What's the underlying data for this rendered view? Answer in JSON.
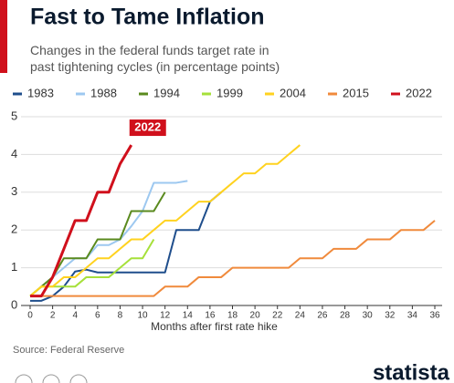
{
  "chart_data": {
    "type": "line",
    "title": "Fast to Tame Inflation",
    "subtitle": "Changes in the federal funds target rate in past tightening cycles (in percentage points)",
    "xlabel": "Months after first rate hike",
    "source": "Source: Federal Reserve",
    "brand": "statista",
    "xlim": [
      0,
      36
    ],
    "xticks": [
      0,
      2,
      4,
      6,
      8,
      10,
      12,
      14,
      16,
      18,
      20,
      22,
      24,
      26,
      28,
      30,
      32,
      34,
      36
    ],
    "ylim": [
      0,
      5
    ],
    "yticks": [
      0,
      1,
      2,
      3,
      4,
      5
    ],
    "grid": true,
    "series": [
      {
        "name": "1983",
        "color": "#1f4e8c",
        "x": [
          0,
          1,
          2,
          3,
          4,
          5,
          6,
          7,
          8,
          9,
          10,
          11,
          12,
          13,
          14,
          15,
          16,
          17
        ],
        "values": [
          0.125,
          0.125,
          0.25,
          0.5,
          0.9,
          0.95,
          0.875,
          0.875,
          0.875,
          0.875,
          0.875,
          0.875,
          0.875,
          2,
          2,
          2,
          2.75,
          3
        ]
      },
      {
        "name": "1988",
        "color": "#9dc8f0",
        "x": [
          0,
          1,
          2,
          3,
          4,
          5,
          6,
          7,
          8,
          9,
          10,
          11,
          12,
          13,
          14
        ],
        "values": [
          0.25,
          0.5,
          0.75,
          1,
          1.25,
          1.25,
          1.6,
          1.6,
          1.75,
          2.1,
          2.5,
          3.25,
          3.25,
          3.25,
          3.3
        ]
      },
      {
        "name": "1994",
        "color": "#5a8a1e",
        "x": [
          0,
          1,
          2,
          3,
          4,
          5,
          6,
          7,
          8,
          9,
          10,
          11,
          12
        ],
        "values": [
          0.25,
          0.5,
          0.75,
          1.25,
          1.25,
          1.25,
          1.75,
          1.75,
          1.75,
          2.5,
          2.5,
          2.5,
          3
        ]
      },
      {
        "name": "1999",
        "color": "#a6e03a",
        "x": [
          0,
          1,
          2,
          3,
          4,
          5,
          6,
          7,
          8,
          9,
          10,
          11
        ],
        "values": [
          0.25,
          0.5,
          0.5,
          0.5,
          0.5,
          0.75,
          0.75,
          0.75,
          1,
          1.25,
          1.25,
          1.75
        ]
      },
      {
        "name": "2004",
        "color": "#ffd21f",
        "x": [
          0,
          1,
          2,
          3,
          4,
          5,
          6,
          7,
          8,
          9,
          10,
          11,
          12,
          13,
          14,
          15,
          16,
          17,
          18,
          19,
          20,
          21,
          22,
          23,
          24
        ],
        "values": [
          0.25,
          0.5,
          0.5,
          0.75,
          0.75,
          1,
          1.25,
          1.25,
          1.5,
          1.75,
          1.75,
          2,
          2.25,
          2.25,
          2.5,
          2.75,
          2.75,
          3,
          3.25,
          3.5,
          3.5,
          3.75,
          3.75,
          4,
          4.25
        ]
      },
      {
        "name": "2015",
        "color": "#f08a3c",
        "x": [
          0,
          11,
          12,
          14,
          15,
          17,
          18,
          23,
          24,
          26,
          27,
          29,
          30,
          32,
          33,
          35,
          36
        ],
        "values": [
          0.25,
          0.25,
          0.5,
          0.5,
          0.75,
          0.75,
          1,
          1,
          1.25,
          1.25,
          1.5,
          1.5,
          1.75,
          1.75,
          2,
          2,
          2.25
        ]
      },
      {
        "name": "2022",
        "color": "#d0101c",
        "x": [
          0,
          1,
          2,
          3,
          4,
          5,
          6,
          7,
          8,
          9
        ],
        "values": [
          0.25,
          0.25,
          0.75,
          1.5,
          2.25,
          2.25,
          3,
          3,
          3.75,
          4.25
        ]
      }
    ]
  }
}
